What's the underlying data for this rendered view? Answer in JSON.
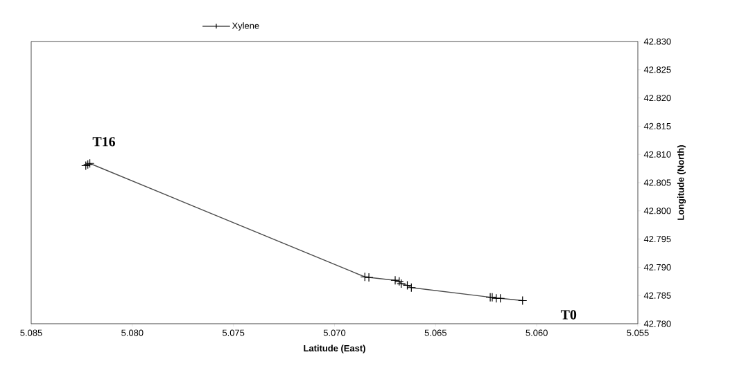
{
  "chart_data": {
    "type": "line",
    "xlabel": "Latitude (East)",
    "ylabel": "Longitude (North)",
    "x": [
      5.0607,
      5.0618,
      5.062,
      5.0622,
      5.0623,
      5.0662,
      5.0664,
      5.0667,
      5.0668,
      5.067,
      5.0683,
      5.0685,
      5.0821,
      5.0822,
      5.0823
    ],
    "series": [
      {
        "name": "Xylene",
        "color": "#4d4d4d",
        "values": [
          42.7841,
          42.7845,
          42.7845,
          42.7847,
          42.7847,
          42.7864,
          42.7868,
          42.7871,
          42.7875,
          42.7877,
          42.7882,
          42.7883,
          42.8084,
          42.8082,
          42.808
        ]
      }
    ],
    "xlim": [
      5.085,
      5.055
    ],
    "xticks": [
      5.085,
      {
        "value": 5.08,
        "label": "5.080"
      },
      5.075,
      {
        "value": 5.07,
        "label": "5.070"
      },
      5.065,
      {
        "value": 5.06,
        "label": "5.060"
      },
      5.055
    ],
    "ylim": [
      42.78,
      42.83
    ],
    "yticks": [
      {
        "value": 42.78,
        "label": "42.780"
      },
      42.785,
      {
        "value": 42.79,
        "label": "42.790"
      },
      42.795,
      {
        "value": 42.8,
        "label": "42.800"
      },
      42.805,
      {
        "value": 42.81,
        "label": "42.810"
      },
      42.815,
      {
        "value": 42.82,
        "label": "42.820"
      },
      42.825,
      {
        "value": 42.83,
        "label": "42.830"
      }
    ],
    "annotations": [
      "T16",
      "T0"
    ],
    "marker": "cross",
    "line_style": "solid",
    "grid": false,
    "legend": "top"
  }
}
